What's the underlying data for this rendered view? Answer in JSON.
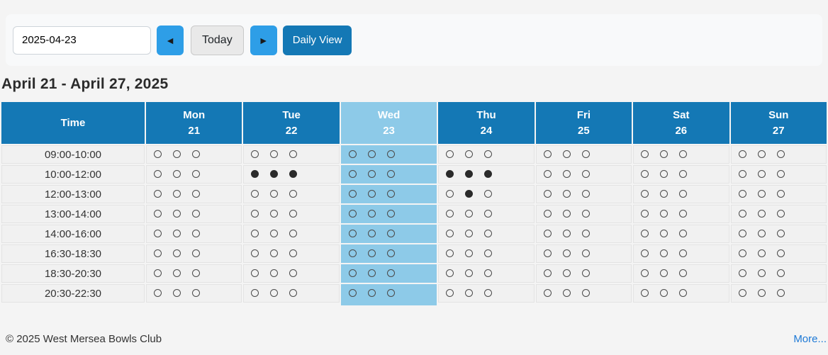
{
  "toolbar": {
    "date_value": "2025-04-23",
    "prev_icon": "◄",
    "next_icon": "►",
    "today_label": "Today",
    "daily_view_label": "Daily View"
  },
  "week_title": "April 21 - April 27, 2025",
  "schedule": {
    "time_header": "Time",
    "days": [
      {
        "name": "Mon",
        "date": "21",
        "is_today": false
      },
      {
        "name": "Tue",
        "date": "22",
        "is_today": false
      },
      {
        "name": "Wed",
        "date": "23",
        "is_today": true
      },
      {
        "name": "Thu",
        "date": "24",
        "is_today": false
      },
      {
        "name": "Fri",
        "date": "25",
        "is_today": false
      },
      {
        "name": "Sat",
        "date": "26",
        "is_today": false
      },
      {
        "name": "Sun",
        "date": "27",
        "is_today": false
      }
    ],
    "rows": [
      {
        "time": "09:00-10:00",
        "slots": [
          [
            0,
            0,
            0
          ],
          [
            0,
            0,
            0
          ],
          [
            0,
            0,
            0
          ],
          [
            0,
            0,
            0
          ],
          [
            0,
            0,
            0
          ],
          [
            0,
            0,
            0
          ],
          [
            0,
            0,
            0
          ]
        ]
      },
      {
        "time": "10:00-12:00",
        "slots": [
          [
            0,
            0,
            0
          ],
          [
            1,
            1,
            1
          ],
          [
            0,
            0,
            0
          ],
          [
            1,
            1,
            1
          ],
          [
            0,
            0,
            0
          ],
          [
            0,
            0,
            0
          ],
          [
            0,
            0,
            0
          ]
        ]
      },
      {
        "time": "12:00-13:00",
        "slots": [
          [
            0,
            0,
            0
          ],
          [
            0,
            0,
            0
          ],
          [
            0,
            0,
            0
          ],
          [
            0,
            1,
            0
          ],
          [
            0,
            0,
            0
          ],
          [
            0,
            0,
            0
          ],
          [
            0,
            0,
            0
          ]
        ]
      },
      {
        "time": "13:00-14:00",
        "slots": [
          [
            0,
            0,
            0
          ],
          [
            0,
            0,
            0
          ],
          [
            0,
            0,
            0
          ],
          [
            0,
            0,
            0
          ],
          [
            0,
            0,
            0
          ],
          [
            0,
            0,
            0
          ],
          [
            0,
            0,
            0
          ]
        ]
      },
      {
        "time": "14:00-16:00",
        "slots": [
          [
            0,
            0,
            0
          ],
          [
            0,
            0,
            0
          ],
          [
            0,
            0,
            0
          ],
          [
            0,
            0,
            0
          ],
          [
            0,
            0,
            0
          ],
          [
            0,
            0,
            0
          ],
          [
            0,
            0,
            0
          ]
        ]
      },
      {
        "time": "16:30-18:30",
        "slots": [
          [
            0,
            0,
            0
          ],
          [
            0,
            0,
            0
          ],
          [
            0,
            0,
            0
          ],
          [
            0,
            0,
            0
          ],
          [
            0,
            0,
            0
          ],
          [
            0,
            0,
            0
          ],
          [
            0,
            0,
            0
          ]
        ]
      },
      {
        "time": "18:30-20:30",
        "slots": [
          [
            0,
            0,
            0
          ],
          [
            0,
            0,
            0
          ],
          [
            0,
            0,
            0
          ],
          [
            0,
            0,
            0
          ],
          [
            0,
            0,
            0
          ],
          [
            0,
            0,
            0
          ],
          [
            0,
            0,
            0
          ]
        ]
      },
      {
        "time": "20:30-22:30",
        "slots": [
          [
            0,
            0,
            0
          ],
          [
            0,
            0,
            0
          ],
          [
            0,
            0,
            0
          ],
          [
            0,
            0,
            0
          ],
          [
            0,
            0,
            0
          ],
          [
            0,
            0,
            0
          ],
          [
            0,
            0,
            0
          ]
        ]
      }
    ]
  },
  "footer": {
    "copyright": "© 2025 West Mersea Bowls Club",
    "more_label": "More..."
  },
  "colors": {
    "page_bg": "#f4f4f4",
    "panel_bg": "#f8f9fa",
    "header_blue": "#1478b5",
    "today_blue": "#8dcae8",
    "nav_blue": "#2e9ee7",
    "daily_view_blue": "#1478b5",
    "cell_bg": "#f1f1f1",
    "circle_ring": "#4a4a4a",
    "booked_fill": "#2b2b2b",
    "link_blue": "#1d79d6"
  }
}
